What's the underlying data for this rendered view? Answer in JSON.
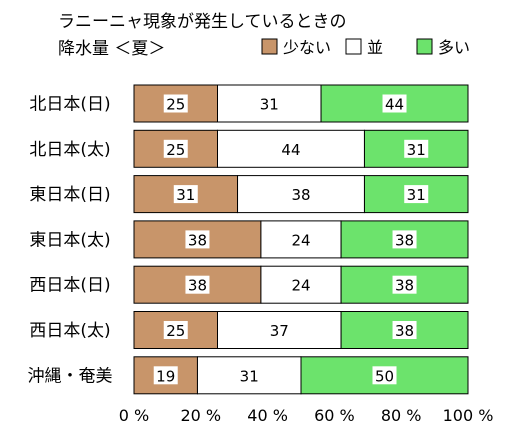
{
  "chart_data": {
    "type": "bar",
    "orientation": "horizontal",
    "stacked": true,
    "title_line1": "ラニーニャ現象が発生しているときの",
    "title_line2": "降水量 ＜夏＞",
    "categories": [
      "北日本(日)",
      "北日本(太)",
      "東日本(日)",
      "東日本(太)",
      "西日本(日)",
      "西日本(太)",
      "沖縄・奄美"
    ],
    "series": [
      {
        "name": "少ない",
        "color": "#c8956a",
        "values": [
          25,
          25,
          31,
          38,
          38,
          25,
          19
        ]
      },
      {
        "name": "並",
        "color": "#ffffff",
        "values": [
          31,
          44,
          38,
          24,
          24,
          37,
          31
        ]
      },
      {
        "name": "多い",
        "color": "#6ce36c",
        "values": [
          44,
          31,
          31,
          38,
          38,
          38,
          50
        ]
      }
    ],
    "xlim": [
      0,
      100
    ],
    "xticks": [
      "0 %",
      "20 %",
      "40 %",
      "60 %",
      "80 %",
      "100 %"
    ],
    "legend_position": "top-right",
    "grid": false
  }
}
